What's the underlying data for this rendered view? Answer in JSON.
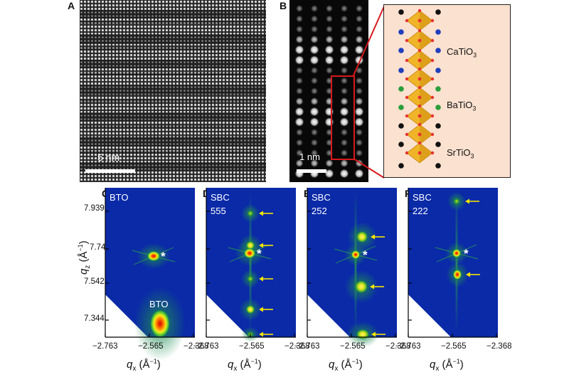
{
  "panels": {
    "A": {
      "label": "A",
      "scale_text": "5 nm"
    },
    "B": {
      "label": "B",
      "scale_text": "1 nm",
      "layers": [
        {
          "name": "CaTiO",
          "sub": "3"
        },
        {
          "name": "BaTiO",
          "sub": "3"
        },
        {
          "name": "SrTiO",
          "sub": "3"
        }
      ]
    },
    "C": {
      "label": "C",
      "sample": [
        "BTO"
      ],
      "substrate_label": "BTO"
    },
    "D": {
      "label": "D",
      "sample": [
        "SBC",
        "555"
      ]
    },
    "E": {
      "label": "E",
      "sample": [
        "SBC",
        "252"
      ]
    },
    "F": {
      "label": "F",
      "sample": [
        "SBC",
        "222"
      ]
    }
  },
  "rsm_axes": {
    "xlabel_main": "q",
    "xlabel_sub": "x",
    "xlabel_unit": " (Å",
    "xlabel_exp": "−1",
    "xlabel_close": ")",
    "ylabel_main": "q",
    "ylabel_sub": "z",
    "ylabel_unit": " (Å",
    "ylabel_exp": "−1",
    "ylabel_close": ")",
    "x_ticks": [
      "−2.763",
      "−2.565",
      "−2.368"
    ],
    "y_ticks": [
      "7.939",
      "7.74",
      "7.542",
      "7.344"
    ],
    "substrate_marker": "*"
  },
  "colors": {
    "rsm_background": "#0a2aa8",
    "arrow": "#f5e400",
    "crystal_panel_bg": "#fbe1cf",
    "octahedron": "#f0b429",
    "zoom_box": "#d7191c"
  }
}
